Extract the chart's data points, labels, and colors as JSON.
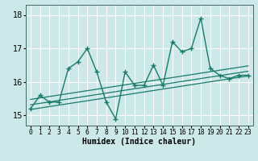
{
  "xlabel": "Humidex (Indice chaleur)",
  "bg_color": "#cce8e8",
  "line_color": "#1a7a6a",
  "grid_color": "#ffffff",
  "x_data": [
    0,
    1,
    2,
    3,
    4,
    5,
    6,
    7,
    8,
    9,
    10,
    11,
    12,
    13,
    14,
    15,
    16,
    17,
    18,
    19,
    20,
    21,
    22,
    23
  ],
  "y_data": [
    15.2,
    15.6,
    15.4,
    15.4,
    16.4,
    16.6,
    17.0,
    16.3,
    15.4,
    14.9,
    16.3,
    15.9,
    15.9,
    16.5,
    15.9,
    17.2,
    16.9,
    17.0,
    17.9,
    16.4,
    16.2,
    16.1,
    16.2,
    16.2
  ],
  "ylim": [
    14.7,
    18.3
  ],
  "yticks": [
    15,
    16,
    17,
    18
  ],
  "xlim": [
    -0.5,
    23.5
  ],
  "trend_lines": [
    {
      "x0": 0,
      "y0": 15.18,
      "x1": 23,
      "y1": 16.18
    },
    {
      "x0": 0,
      "y0": 15.32,
      "x1": 23,
      "y1": 16.32
    },
    {
      "x0": 0,
      "y0": 15.48,
      "x1": 23,
      "y1": 16.48
    }
  ],
  "xlabel_fontsize": 7,
  "ytick_fontsize": 7,
  "xtick_fontsize": 5.8
}
